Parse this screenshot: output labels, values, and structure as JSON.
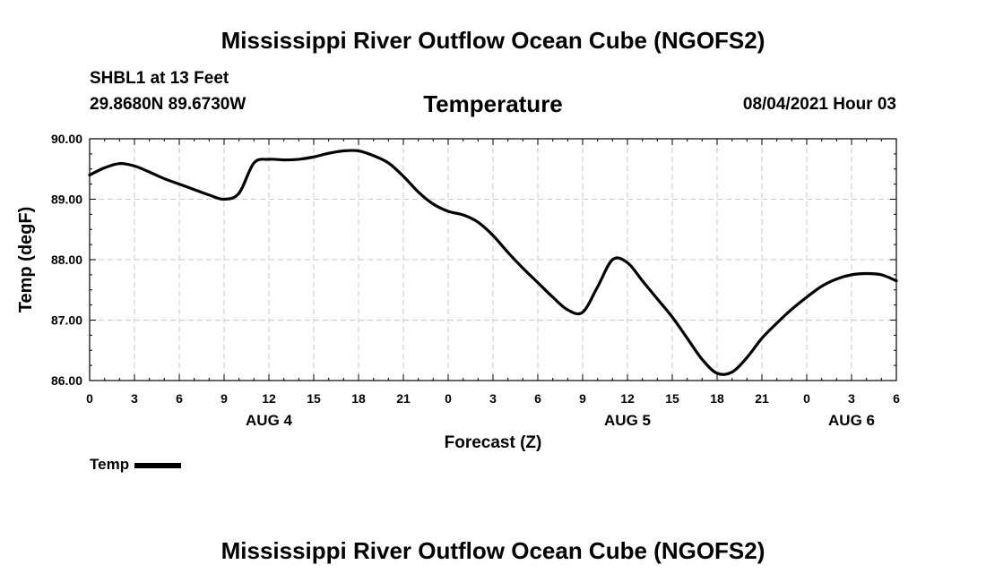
{
  "header": {
    "title": "Mississippi River Outflow Ocean Cube (NGOFS2)",
    "station": "SHBL1 at 13 Feet",
    "coordinates": "29.8680N  89.6730W",
    "chart_title": "Temperature",
    "datetime": "08/04/2021 Hour 03"
  },
  "footer": {
    "title": "Mississippi River Outflow Ocean Cube (NGOFS2)"
  },
  "legend": {
    "label": "Temp",
    "color": "#000000"
  },
  "chart_data": {
    "type": "line",
    "title": "Temperature",
    "xlabel": "Forecast (Z)",
    "ylabel": "Temp (degF)",
    "xlim": [
      0,
      54
    ],
    "ylim": [
      86,
      90
    ],
    "grid": true,
    "y_ticks": [
      86,
      87,
      88,
      89,
      90
    ],
    "y_tick_labels": [
      "86.00",
      "87.00",
      "88.00",
      "89.00",
      "90.00"
    ],
    "x_ticks": [
      0,
      3,
      6,
      9,
      12,
      15,
      18,
      21,
      24,
      27,
      30,
      33,
      36,
      39,
      42,
      45,
      48,
      51,
      54
    ],
    "x_tick_labels": [
      "0",
      "3",
      "6",
      "9",
      "12",
      "15",
      "18",
      "21",
      "0",
      "3",
      "6",
      "9",
      "12",
      "15",
      "18",
      "21",
      "0",
      "3",
      "6"
    ],
    "day_labels": [
      {
        "hour": 12,
        "label": "AUG 4"
      },
      {
        "hour": 36,
        "label": "AUG 5"
      },
      {
        "hour": 51,
        "label": "AUG 6"
      }
    ],
    "series": [
      {
        "name": "Temp",
        "x": [
          0,
          1,
          2,
          3,
          4,
          5,
          6,
          7,
          8,
          9,
          10,
          11,
          12,
          13,
          14,
          15,
          16,
          17,
          18,
          19,
          20,
          21,
          22,
          23,
          24,
          25,
          26,
          27,
          28,
          29,
          30,
          31,
          32,
          33,
          34,
          35,
          36,
          37,
          38,
          39,
          40,
          41,
          42,
          43,
          44,
          45,
          46,
          47,
          48,
          49,
          50,
          51,
          52,
          53,
          54
        ],
        "values": [
          89.4,
          89.52,
          89.59,
          89.55,
          89.45,
          89.34,
          89.25,
          89.16,
          89.07,
          89.0,
          89.1,
          89.6,
          89.66,
          89.65,
          89.66,
          89.7,
          89.76,
          89.8,
          89.8,
          89.72,
          89.6,
          89.38,
          89.12,
          88.92,
          88.8,
          88.74,
          88.62,
          88.4,
          88.12,
          87.86,
          87.62,
          87.38,
          87.17,
          87.13,
          87.55,
          88.0,
          87.95,
          87.65,
          87.35,
          87.05,
          86.7,
          86.35,
          86.12,
          86.14,
          86.38,
          86.7,
          86.95,
          87.18,
          87.38,
          87.56,
          87.68,
          87.75,
          87.77,
          87.75,
          87.65
        ]
      }
    ]
  }
}
